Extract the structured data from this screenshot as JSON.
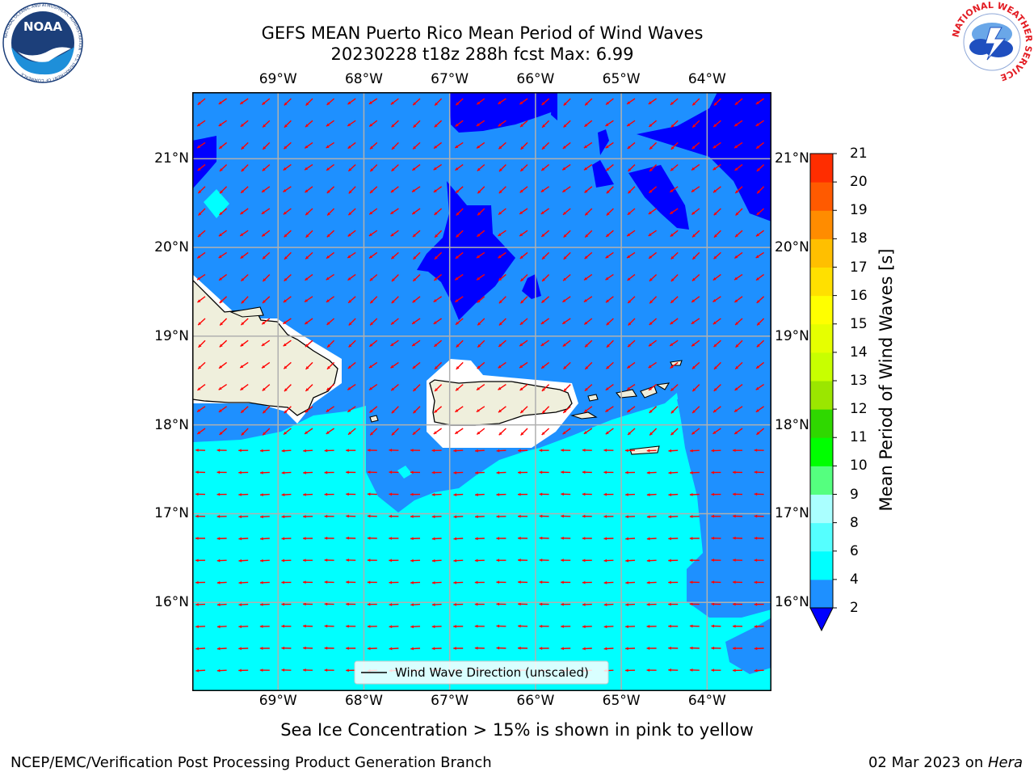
{
  "title": {
    "line1": "GEFS MEAN Puerto Rico Mean Period of Wind Waves",
    "line2": "20230228 t18z 288h fcst   Max: 6.99"
  },
  "logos": {
    "noaa_text": "NOAA",
    "noaa_ring": "NATIONAL OCEANIC AND ATMOSPHERIC ADMINISTRATION · U.S. DEPARTMENT OF COMMERCE",
    "nws_ring": "NATIONAL WEATHER SERVICE"
  },
  "map": {
    "lon_ticks": [
      "69°W",
      "68°W",
      "67°W",
      "66°W",
      "65°W",
      "64°W"
    ],
    "lat_ticks": [
      "21°N",
      "20°N",
      "19°N",
      "18°N",
      "17°N",
      "16°N"
    ],
    "lon_values": [
      -69,
      -68,
      -67,
      -66,
      -65,
      -64
    ],
    "lat_values": [
      21,
      20,
      19,
      18,
      17,
      16
    ],
    "extent": {
      "lon": [
        -70,
        -63.25
      ],
      "lat": [
        15,
        21.75
      ]
    },
    "legend_label": "Wind Wave Direction (unscaled)",
    "colors": {
      "level_2_4": "#1e90ff",
      "level_below_2": "#0000ff",
      "level_4_6": "#00ffff",
      "land": "#efefdc",
      "arrow": "#ff0000",
      "grid": "#b0b0b0"
    }
  },
  "colorbar": {
    "label": "Mean Period of Wind Waves [s]",
    "ticks": [
      "2",
      "4",
      "6",
      "8",
      "9",
      "10",
      "11",
      "12",
      "13",
      "14",
      "15",
      "16",
      "17",
      "18",
      "19",
      "20",
      "21"
    ],
    "colors": [
      "#1e90ff",
      "#00ffff",
      "#55ffff",
      "#aaffff",
      "#55ff7f",
      "#00ff00",
      "#2fd800",
      "#9be600",
      "#c8ff00",
      "#e6ff00",
      "#ffff00",
      "#ffe000",
      "#ffbf00",
      "#ff8c00",
      "#ff5a00",
      "#ff2d00",
      "#ff0000"
    ],
    "under_color": "#0000ff"
  },
  "subtitle": "Sea Ice Concentration > 15% is shown in pink to yellow",
  "footer": {
    "left": "NCEP/EMC/Verification Post Processing Product Generation Branch",
    "date": "02 Mar 2023 on ",
    "machine": "Hera"
  }
}
